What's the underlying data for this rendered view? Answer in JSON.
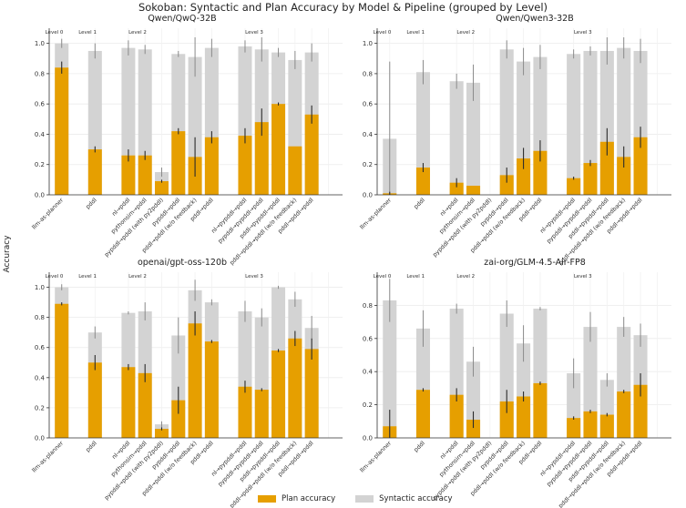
{
  "figure": {
    "title": "Sokoban: Syntactic and Plan Accuracy by Model & Pipeline (grouped by Level)",
    "ylabel": "Accuracy",
    "legend": [
      {
        "label": "Plan accuracy",
        "color": "#e69f00"
      },
      {
        "label": "Syntactic accuracy",
        "color": "#d3d3d3"
      }
    ]
  },
  "chart_data": [
    {
      "type": "bar",
      "title": "Qwen/QwQ-32B",
      "ylim": [
        0,
        1.1
      ],
      "yticks": [
        0.0,
        0.2,
        0.4,
        0.6,
        0.8,
        1.0
      ],
      "levels": [
        {
          "label": "Level 0",
          "start": 0
        },
        {
          "label": "Level 1",
          "start": 1
        },
        {
          "label": "Level 2",
          "start": 3
        },
        {
          "label": "Level 3",
          "start": 9
        }
      ],
      "positions": [
        0,
        2,
        4,
        5,
        6,
        7,
        8,
        9,
        11,
        12,
        13,
        14,
        15,
        16
      ],
      "categories": [
        "llm-as-planner",
        "pddl",
        "nl→pddl",
        "pythonsim→pddl",
        "pypddl→pddl (with py2pddl)",
        "pypddl→pddl",
        "pddl→pddl (w/o feedback)",
        "pddl→pddl",
        "nl→pypddl→pddl",
        "pypddl→pypddl→pddl",
        "pddl→pypddl→pddl",
        "pddl→pddl→pddl (w/o feedback)",
        "pddl→pddl→pddl",
        ""
      ],
      "series": [
        {
          "name": "Syntactic accuracy",
          "values": [
            1.0,
            0.95,
            0.97,
            0.96,
            0.15,
            0.93,
            0.91,
            0.97,
            0.98,
            0.96,
            0.94,
            0.89,
            0.94,
            null
          ],
          "errors": [
            0.03,
            0.05,
            0.05,
            0.03,
            0.03,
            0.02,
            0.13,
            0.06,
            0.04,
            0.08,
            0.03,
            0.06,
            0.06,
            null
          ]
        },
        {
          "name": "Plan accuracy",
          "values": [
            0.84,
            0.3,
            0.26,
            0.26,
            0.09,
            0.42,
            0.25,
            0.38,
            0.39,
            0.48,
            0.6,
            0.32,
            0.53,
            null
          ],
          "errors": [
            0.04,
            0.02,
            0.04,
            0.03,
            0.01,
            0.02,
            0.13,
            0.04,
            0.05,
            0.09,
            0.01,
            0.0,
            0.06,
            null
          ]
        }
      ]
    },
    {
      "type": "bar",
      "title": "Qwen/Qwen3-32B",
      "ylim": [
        0,
        1.1
      ],
      "yticks": [
        0.0,
        0.2,
        0.4,
        0.6,
        0.8,
        1.0
      ],
      "levels": [
        {
          "label": "Level 0",
          "start": 0
        },
        {
          "label": "Level 1",
          "start": 1
        },
        {
          "label": "Level 2",
          "start": 3
        },
        {
          "label": "Level 3",
          "start": 9
        }
      ],
      "positions": [
        0,
        2,
        4,
        5,
        6,
        7,
        8,
        9,
        11,
        12,
        13,
        14,
        15,
        16
      ],
      "categories": [
        "llm-as-planner",
        "pddl",
        "nl→pddl",
        "pythonsim→pddl",
        "pypddl→pddl (with py2pddl)",
        "pypddl→pddl",
        "pddl→pddl (w/o feedback)",
        "pddl→pddl",
        "nl→pypddl→pddl",
        "pypddl→pypddl→pddl",
        "pddl→pypddl→pddl",
        "pddl→pddl→pddl (w/o feedback)",
        "pddl→pddl→pddl",
        ""
      ],
      "series": [
        {
          "name": "Syntactic accuracy",
          "values": [
            0.37,
            0.81,
            0.75,
            0.74,
            0.0,
            0.96,
            0.88,
            0.91,
            0.93,
            0.95,
            0.95,
            0.97,
            0.95,
            null
          ],
          "errors": [
            0.51,
            0.08,
            0.05,
            0.12,
            0.0,
            0.06,
            0.09,
            0.08,
            0.03,
            0.03,
            0.09,
            0.07,
            0.08,
            null
          ]
        },
        {
          "name": "Plan accuracy",
          "values": [
            0.01,
            0.18,
            0.08,
            0.06,
            0.0,
            0.13,
            0.24,
            0.29,
            0.11,
            0.21,
            0.35,
            0.25,
            0.38,
            null
          ],
          "errors": [
            0.01,
            0.03,
            0.03,
            0.0,
            0.0,
            0.05,
            0.07,
            0.07,
            0.01,
            0.02,
            0.09,
            0.07,
            0.07,
            null
          ]
        }
      ]
    },
    {
      "type": "bar",
      "title": "openai/gpt-oss-120b",
      "ylim": [
        0,
        1.1
      ],
      "yticks": [
        0.0,
        0.2,
        0.4,
        0.6,
        0.8,
        1.0
      ],
      "levels": [
        {
          "label": "Level 0",
          "start": 0
        },
        {
          "label": "Level 1",
          "start": 1
        },
        {
          "label": "Level 2",
          "start": 3
        },
        {
          "label": "Level 3",
          "start": 9
        }
      ],
      "positions": [
        0,
        2,
        4,
        5,
        6,
        7,
        8,
        9,
        11,
        12,
        13,
        14,
        15,
        16
      ],
      "categories": [
        "llm-as-planner",
        "pddl",
        "nl→pddl",
        "pythonsim→pddl",
        "pypddl→pddl (with py2pddl)",
        "pypddl→pddl",
        "pddl→pddl (w/o feedback)",
        "pddl→pddl",
        "nl→pypddl→pddl",
        "pypddl→pypddl→pddl",
        "pddl→pypddl→pddl",
        "pddl→pddl→pddl (w/o feedback)",
        "pddl→pddl→pddl",
        ""
      ],
      "series": [
        {
          "name": "Syntactic accuracy",
          "values": [
            1.0,
            0.7,
            0.83,
            0.84,
            0.09,
            0.68,
            0.98,
            0.9,
            0.84,
            0.8,
            1.0,
            0.92,
            0.73,
            null
          ],
          "errors": [
            0.02,
            0.04,
            0.01,
            0.06,
            0.02,
            0.12,
            0.07,
            0.02,
            0.07,
            0.06,
            0.01,
            0.05,
            0.08,
            null
          ]
        },
        {
          "name": "Plan accuracy",
          "values": [
            0.89,
            0.5,
            0.47,
            0.43,
            0.06,
            0.25,
            0.76,
            0.64,
            0.34,
            0.32,
            0.58,
            0.66,
            0.59,
            null
          ],
          "errors": [
            0.01,
            0.05,
            0.02,
            0.06,
            0.01,
            0.09,
            0.08,
            0.01,
            0.04,
            0.01,
            0.01,
            0.05,
            0.07,
            null
          ]
        }
      ]
    },
    {
      "type": "bar",
      "title": "zai-org/GLM-4.5-Air-FP8",
      "ylim": [
        0,
        1.0
      ],
      "yticks": [
        0.0,
        0.2,
        0.4,
        0.6,
        0.8
      ],
      "levels": [
        {
          "label": "Level 0",
          "start": 0
        },
        {
          "label": "Level 1",
          "start": 1
        },
        {
          "label": "Level 2",
          "start": 3
        },
        {
          "label": "Level 3",
          "start": 9
        }
      ],
      "positions": [
        0,
        2,
        4,
        5,
        6,
        7,
        8,
        9,
        11,
        12,
        13,
        14,
        15,
        16
      ],
      "categories": [
        "llm-as-planner",
        "pddl",
        "nl→pddl",
        "pythonsim→pddl",
        "pypddl→pddl (with py2pddl)",
        "pypddl→pddl",
        "pddl→pddl (w/o feedback)",
        "pddl→pddl",
        "nl→pypddl→pddl",
        "pypddl→pypddl→pddl",
        "pddl→pypddl→pddl",
        "pddl→pddl→pddl (w/o feedback)",
        "pddl→pddl→pddl",
        ""
      ],
      "series": [
        {
          "name": "Syntactic accuracy",
          "values": [
            0.83,
            0.66,
            0.78,
            0.46,
            0.0,
            0.75,
            0.57,
            0.78,
            0.39,
            0.67,
            0.35,
            0.67,
            0.62,
            null
          ],
          "errors": [
            0.13,
            0.11,
            0.03,
            0.09,
            0.0,
            0.08,
            0.11,
            0.01,
            0.09,
            0.09,
            0.04,
            0.06,
            0.07,
            null
          ]
        },
        {
          "name": "Plan accuracy",
          "values": [
            0.07,
            0.29,
            0.26,
            0.11,
            0.0,
            0.22,
            0.25,
            0.33,
            0.12,
            0.16,
            0.14,
            0.28,
            0.32,
            null
          ],
          "errors": [
            0.1,
            0.01,
            0.04,
            0.05,
            0.0,
            0.07,
            0.03,
            0.01,
            0.01,
            0.01,
            0.01,
            0.01,
            0.07,
            null
          ]
        }
      ]
    }
  ]
}
